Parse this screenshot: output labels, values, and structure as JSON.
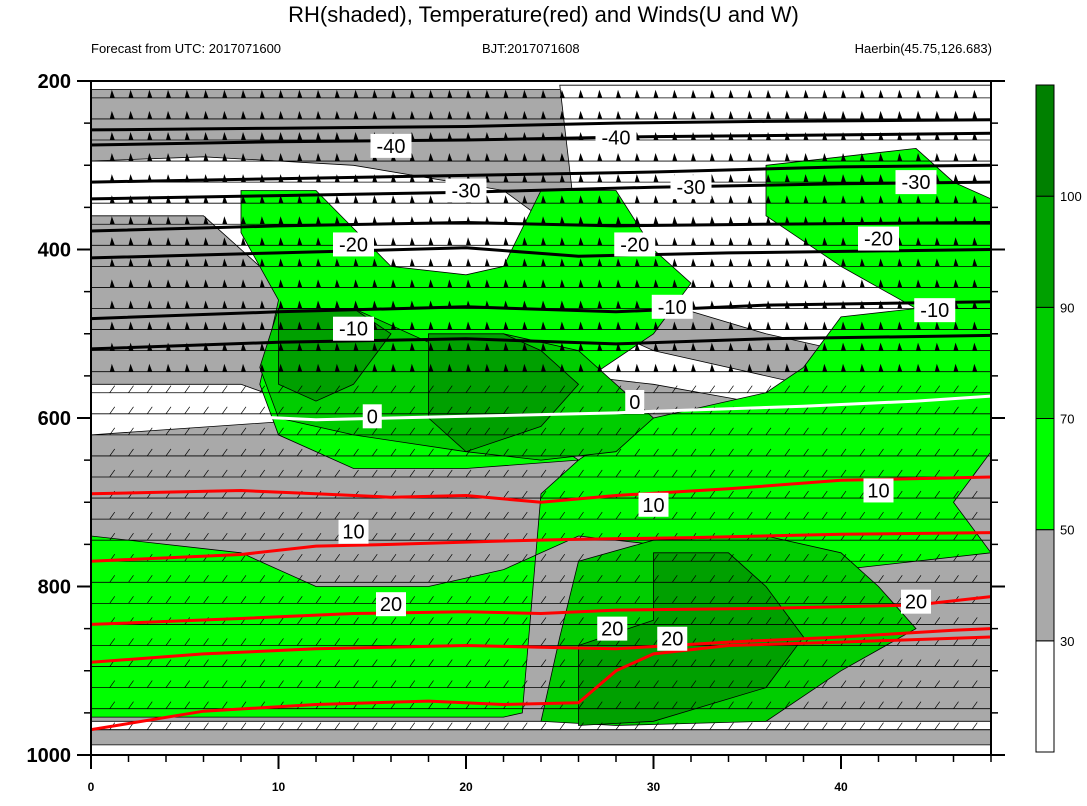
{
  "title": "RH(shaded), Temperature(red) and Winds(U and W)",
  "subtitle_left": "Forecast from UTC: 2017071600",
  "subtitle_center": "BJT:2017071608",
  "subtitle_right": "Haerbin(45.75,126.683)",
  "colors": {
    "white": "#ffffff",
    "gray": "#a9a9a9",
    "green_light": "#00ff00",
    "green_mid": "#00cd00",
    "green_dark": "#00a000",
    "green_darkest": "#008000",
    "temp_line": "#ff0000",
    "isotherm_zero": "#ffffff",
    "isotherm_neg": "#000000"
  },
  "chart_data": {
    "type": "heatmap",
    "xlim": [
      0,
      48
    ],
    "ylim": [
      1000,
      200
    ],
    "y_scale": "linear-pressure-inverted",
    "x_ticks": [
      0,
      10,
      20,
      30,
      40
    ],
    "y_ticks": [
      200,
      400,
      600,
      800,
      1000
    ],
    "colorbar": {
      "levels": [
        30,
        50,
        70,
        90,
        100
      ],
      "colors": [
        "#ffffff",
        "#a9a9a9",
        "#00ff00",
        "#00cd00",
        "#00a000",
        "#008000"
      ]
    },
    "rh_regions": [
      {
        "level": "gray",
        "points": [
          [
            0,
            988
          ],
          [
            48,
            988
          ],
          [
            48,
            210
          ],
          [
            0,
            210
          ]
        ]
      },
      {
        "level": "white",
        "points": [
          [
            0,
            560
          ],
          [
            8,
            560
          ],
          [
            13,
            600
          ],
          [
            0,
            620
          ]
        ]
      },
      {
        "level": "white",
        "points": [
          [
            0,
            360
          ],
          [
            6,
            360
          ],
          [
            10,
            440
          ],
          [
            16,
            510
          ],
          [
            22,
            540
          ],
          [
            30,
            560
          ],
          [
            40,
            600
          ],
          [
            48,
            600
          ],
          [
            48,
            570
          ],
          [
            38,
            560
          ],
          [
            30,
            520
          ],
          [
            24,
            460
          ],
          [
            26,
            395
          ],
          [
            22,
            330
          ],
          [
            14,
            300
          ],
          [
            6,
            290
          ],
          [
            0,
            295
          ]
        ]
      },
      {
        "level": "white",
        "points": [
          [
            0,
            970
          ],
          [
            48,
            970
          ],
          [
            48,
            960
          ],
          [
            0,
            960
          ]
        ]
      },
      {
        "level": "white",
        "points": [
          [
            25,
            205
          ],
          [
            26,
            395
          ],
          [
            30,
            460
          ],
          [
            36,
            500
          ],
          [
            40,
            520
          ],
          [
            48,
            520
          ],
          [
            48,
            205
          ]
        ]
      },
      {
        "level": "green_light",
        "points": [
          [
            0,
            955
          ],
          [
            22,
            955
          ],
          [
            23,
            950
          ],
          [
            24,
            690
          ],
          [
            26,
            650
          ],
          [
            28,
            620
          ],
          [
            30,
            600
          ],
          [
            36,
            570
          ],
          [
            38,
            540
          ],
          [
            40,
            480
          ],
          [
            44,
            470
          ],
          [
            48,
            470
          ],
          [
            48,
            640
          ],
          [
            46,
            700
          ],
          [
            48,
            760
          ],
          [
            40,
            780
          ],
          [
            34,
            760
          ],
          [
            26,
            740
          ],
          [
            22,
            780
          ],
          [
            18,
            800
          ],
          [
            12,
            800
          ],
          [
            8,
            760
          ],
          [
            0,
            740
          ]
        ]
      },
      {
        "level": "green_light",
        "points": [
          [
            8,
            330
          ],
          [
            12,
            330
          ],
          [
            16,
            420
          ],
          [
            20,
            430
          ],
          [
            22,
            420
          ],
          [
            24,
            330
          ],
          [
            28,
            330
          ],
          [
            30,
            400
          ],
          [
            32,
            440
          ],
          [
            30,
            500
          ],
          [
            26,
            560
          ],
          [
            24,
            620
          ],
          [
            26,
            650
          ],
          [
            20,
            660
          ],
          [
            14,
            660
          ],
          [
            10,
            620
          ],
          [
            9,
            560
          ],
          [
            10,
            460
          ],
          [
            8,
            380
          ]
        ]
      },
      {
        "level": "green_light",
        "points": [
          [
            36,
            300
          ],
          [
            44,
            280
          ],
          [
            46,
            320
          ],
          [
            48,
            340
          ],
          [
            48,
            470
          ],
          [
            44,
            470
          ],
          [
            40,
            420
          ],
          [
            36,
            360
          ]
        ]
      },
      {
        "level": "green_mid",
        "points": [
          [
            10,
            470
          ],
          [
            14,
            470
          ],
          [
            18,
            510
          ],
          [
            22,
            500
          ],
          [
            26,
            520
          ],
          [
            28,
            560
          ],
          [
            30,
            600
          ],
          [
            28,
            640
          ],
          [
            24,
            650
          ],
          [
            20,
            640
          ],
          [
            14,
            620
          ],
          [
            10,
            600
          ],
          [
            9,
            540
          ]
        ]
      },
      {
        "level": "green_mid",
        "points": [
          [
            26,
            770
          ],
          [
            30,
            745
          ],
          [
            36,
            740
          ],
          [
            40,
            760
          ],
          [
            42,
            800
          ],
          [
            44,
            850
          ],
          [
            40,
            900
          ],
          [
            36,
            960
          ],
          [
            28,
            965
          ],
          [
            24,
            960
          ],
          [
            25,
            860
          ]
        ]
      },
      {
        "level": "green_dark",
        "points": [
          [
            10,
            470
          ],
          [
            14,
            470
          ],
          [
            16,
            500
          ],
          [
            14,
            560
          ],
          [
            12,
            580
          ],
          [
            10,
            560
          ]
        ]
      },
      {
        "level": "green_dark",
        "points": [
          [
            18,
            500
          ],
          [
            22,
            500
          ],
          [
            24,
            520
          ],
          [
            26,
            560
          ],
          [
            24,
            610
          ],
          [
            20,
            640
          ],
          [
            18,
            600
          ]
        ]
      },
      {
        "level": "green_dark",
        "points": [
          [
            30,
            760
          ],
          [
            34,
            760
          ],
          [
            36,
            800
          ],
          [
            38,
            860
          ],
          [
            36,
            920
          ],
          [
            30,
            960
          ],
          [
            26,
            965
          ],
          [
            26,
            870
          ],
          [
            30,
            840
          ]
        ]
      }
    ],
    "isotherms": [
      {
        "value": -40,
        "color": "#000000",
        "points": [
          [
            0,
            258
          ],
          [
            10,
            256
          ],
          [
            20,
            254
          ],
          [
            28,
            250
          ],
          [
            36,
            248
          ],
          [
            48,
            246
          ]
        ]
      },
      {
        "value": -40,
        "color": "#000000",
        "points": [
          [
            0,
            276
          ],
          [
            10,
            272
          ],
          [
            20,
            270
          ],
          [
            30,
            266
          ],
          [
            40,
            264
          ],
          [
            48,
            262
          ]
        ]
      },
      {
        "value": -30,
        "color": "#000000",
        "points": [
          [
            0,
            320
          ],
          [
            10,
            316
          ],
          [
            20,
            312
          ],
          [
            30,
            308
          ],
          [
            40,
            302
          ],
          [
            48,
            300
          ]
        ]
      },
      {
        "value": -30,
        "color": "#000000",
        "points": [
          [
            0,
            340
          ],
          [
            10,
            336
          ],
          [
            20,
            332
          ],
          [
            30,
            326
          ],
          [
            40,
            322
          ],
          [
            48,
            320
          ]
        ]
      },
      {
        "value": -20,
        "color": "#000000",
        "points": [
          [
            0,
            378
          ],
          [
            10,
            372
          ],
          [
            20,
            368
          ],
          [
            28,
            372
          ],
          [
            36,
            370
          ],
          [
            48,
            368
          ]
        ]
      },
      {
        "value": -20,
        "color": "#000000",
        "points": [
          [
            0,
            410
          ],
          [
            10,
            404
          ],
          [
            20,
            398
          ],
          [
            26,
            408
          ],
          [
            34,
            404
          ],
          [
            48,
            400
          ]
        ]
      },
      {
        "value": -10,
        "color": "#000000",
        "points": [
          [
            0,
            482
          ],
          [
            10,
            474
          ],
          [
            20,
            468
          ],
          [
            28,
            474
          ],
          [
            36,
            466
          ],
          [
            48,
            462
          ]
        ]
      },
      {
        "value": -10,
        "color": "#000000",
        "points": [
          [
            0,
            518
          ],
          [
            10,
            510
          ],
          [
            20,
            506
          ],
          [
            28,
            512
          ],
          [
            36,
            506
          ],
          [
            48,
            502
          ]
        ]
      },
      {
        "value": 0,
        "color": "#ffffff",
        "points": [
          [
            0,
            602
          ],
          [
            8,
            598
          ],
          [
            12,
            602
          ],
          [
            16,
            600
          ],
          [
            20,
            598
          ],
          [
            28,
            594
          ],
          [
            30,
            592
          ],
          [
            38,
            586
          ],
          [
            44,
            580
          ],
          [
            48,
            574
          ]
        ]
      },
      {
        "value": 10,
        "color": "#ff0000",
        "points": [
          [
            0,
            690
          ],
          [
            8,
            686
          ],
          [
            12,
            690
          ],
          [
            16,
            694
          ],
          [
            20,
            692
          ],
          [
            24,
            700
          ],
          [
            28,
            692
          ],
          [
            34,
            684
          ],
          [
            40,
            674
          ],
          [
            48,
            670
          ]
        ]
      },
      {
        "value": 10,
        "color": "#ff0000",
        "points": [
          [
            0,
            770
          ],
          [
            8,
            762
          ],
          [
            12,
            752
          ],
          [
            16,
            750
          ],
          [
            22,
            746
          ],
          [
            26,
            744
          ],
          [
            32,
            742
          ],
          [
            40,
            738
          ],
          [
            48,
            736
          ]
        ]
      },
      {
        "value": 20,
        "color": "#ff0000",
        "points": [
          [
            0,
            845
          ],
          [
            8,
            838
          ],
          [
            14,
            832
          ],
          [
            20,
            830
          ],
          [
            24,
            832
          ],
          [
            28,
            828
          ],
          [
            36,
            826
          ],
          [
            44,
            822
          ],
          [
            48,
            812
          ]
        ]
      },
      {
        "value": 20,
        "color": "#ff0000",
        "points": [
          [
            0,
            890
          ],
          [
            6,
            880
          ],
          [
            12,
            874
          ],
          [
            20,
            870
          ],
          [
            24,
            872
          ],
          [
            28,
            874
          ],
          [
            34,
            866
          ],
          [
            40,
            860
          ],
          [
            46,
            852
          ],
          [
            48,
            850
          ]
        ]
      },
      {
        "value": 20,
        "color": "#ff0000",
        "points": [
          [
            0,
            970
          ],
          [
            6,
            948
          ],
          [
            12,
            940
          ],
          [
            18,
            936
          ],
          [
            22,
            940
          ],
          [
            26,
            938
          ],
          [
            28,
            900
          ],
          [
            30,
            880
          ],
          [
            34,
            870
          ],
          [
            40,
            866
          ],
          [
            48,
            860
          ]
        ]
      }
    ],
    "contour_labels": [
      {
        "text": "-40",
        "x": 16,
        "y": 277
      },
      {
        "text": "-40",
        "x": 28,
        "y": 267
      },
      {
        "text": "-30",
        "x": 20,
        "y": 330
      },
      {
        "text": "-30",
        "x": 32,
        "y": 326
      },
      {
        "text": "-30",
        "x": 44,
        "y": 320
      },
      {
        "text": "-20",
        "x": 14,
        "y": 394
      },
      {
        "text": "-20",
        "x": 29,
        "y": 394
      },
      {
        "text": "-20",
        "x": 42,
        "y": 387
      },
      {
        "text": "-10",
        "x": 14,
        "y": 494
      },
      {
        "text": "-10",
        "x": 31,
        "y": 468
      },
      {
        "text": "-10",
        "x": 45,
        "y": 472
      },
      {
        "text": "0",
        "x": 15,
        "y": 598
      },
      {
        "text": "0",
        "x": 29,
        "y": 581
      },
      {
        "text": "10",
        "x": 14,
        "y": 735
      },
      {
        "text": "10",
        "x": 30,
        "y": 703
      },
      {
        "text": "10",
        "x": 42,
        "y": 686
      },
      {
        "text": "20",
        "x": 16,
        "y": 821
      },
      {
        "text": "20",
        "x": 31,
        "y": 862
      },
      {
        "text": "20",
        "x": 27.8,
        "y": 850
      },
      {
        "text": "20",
        "x": 44,
        "y": 818
      }
    ],
    "wind_levels": [
      220,
      245,
      270,
      295,
      320,
      345,
      370,
      395,
      420,
      445,
      470,
      495,
      520,
      545,
      570,
      595,
      620,
      645,
      670,
      695,
      720,
      745,
      770,
      795,
      820,
      845,
      870,
      895,
      920,
      945,
      970
    ]
  }
}
